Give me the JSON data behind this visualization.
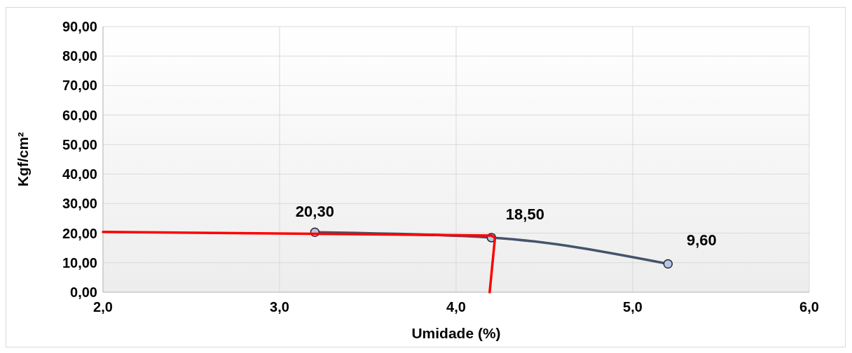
{
  "chart_data": {
    "type": "line",
    "xlabel": "Umidade (%)",
    "ylabel": "Kgf/cm²",
    "x": [
      3.2,
      4.2,
      5.2
    ],
    "series": [
      {
        "color": "#44546a",
        "values": [
          20.3,
          18.5,
          9.6
        ],
        "marker": "circle",
        "value_labels": [
          "20,30",
          "18,50",
          "9,60"
        ]
      },
      {
        "color": "#ff0000",
        "x": [
          2.0,
          3.2,
          4.2,
          4.22,
          4.19
        ],
        "values": [
          20.4,
          19.8,
          19.2,
          18.5,
          0
        ],
        "marker": "none"
      }
    ],
    "xlim": [
      2,
      6
    ],
    "xticks": [
      {
        "value": 2,
        "label": "2,0"
      },
      {
        "value": 3,
        "label": "3,0"
      },
      {
        "value": 4,
        "label": "4,0"
      },
      {
        "value": 5,
        "label": "5,0"
      },
      {
        "value": 6,
        "label": "6,0"
      }
    ],
    "ylim": [
      0,
      90
    ],
    "yticks": [
      {
        "value": 0,
        "label": "0,00"
      },
      {
        "value": 10,
        "label": "10,00"
      },
      {
        "value": 20,
        "label": "20,00"
      },
      {
        "value": 30,
        "label": "30,00"
      },
      {
        "value": 40,
        "label": "40,00"
      },
      {
        "value": 50,
        "label": "50,00"
      },
      {
        "value": 60,
        "label": "60,00"
      },
      {
        "value": 70,
        "label": "70,00"
      },
      {
        "value": 80,
        "label": "80,00"
      },
      {
        "value": 90,
        "label": "90,00"
      }
    ],
    "grid": true,
    "line_style": "solid"
  }
}
